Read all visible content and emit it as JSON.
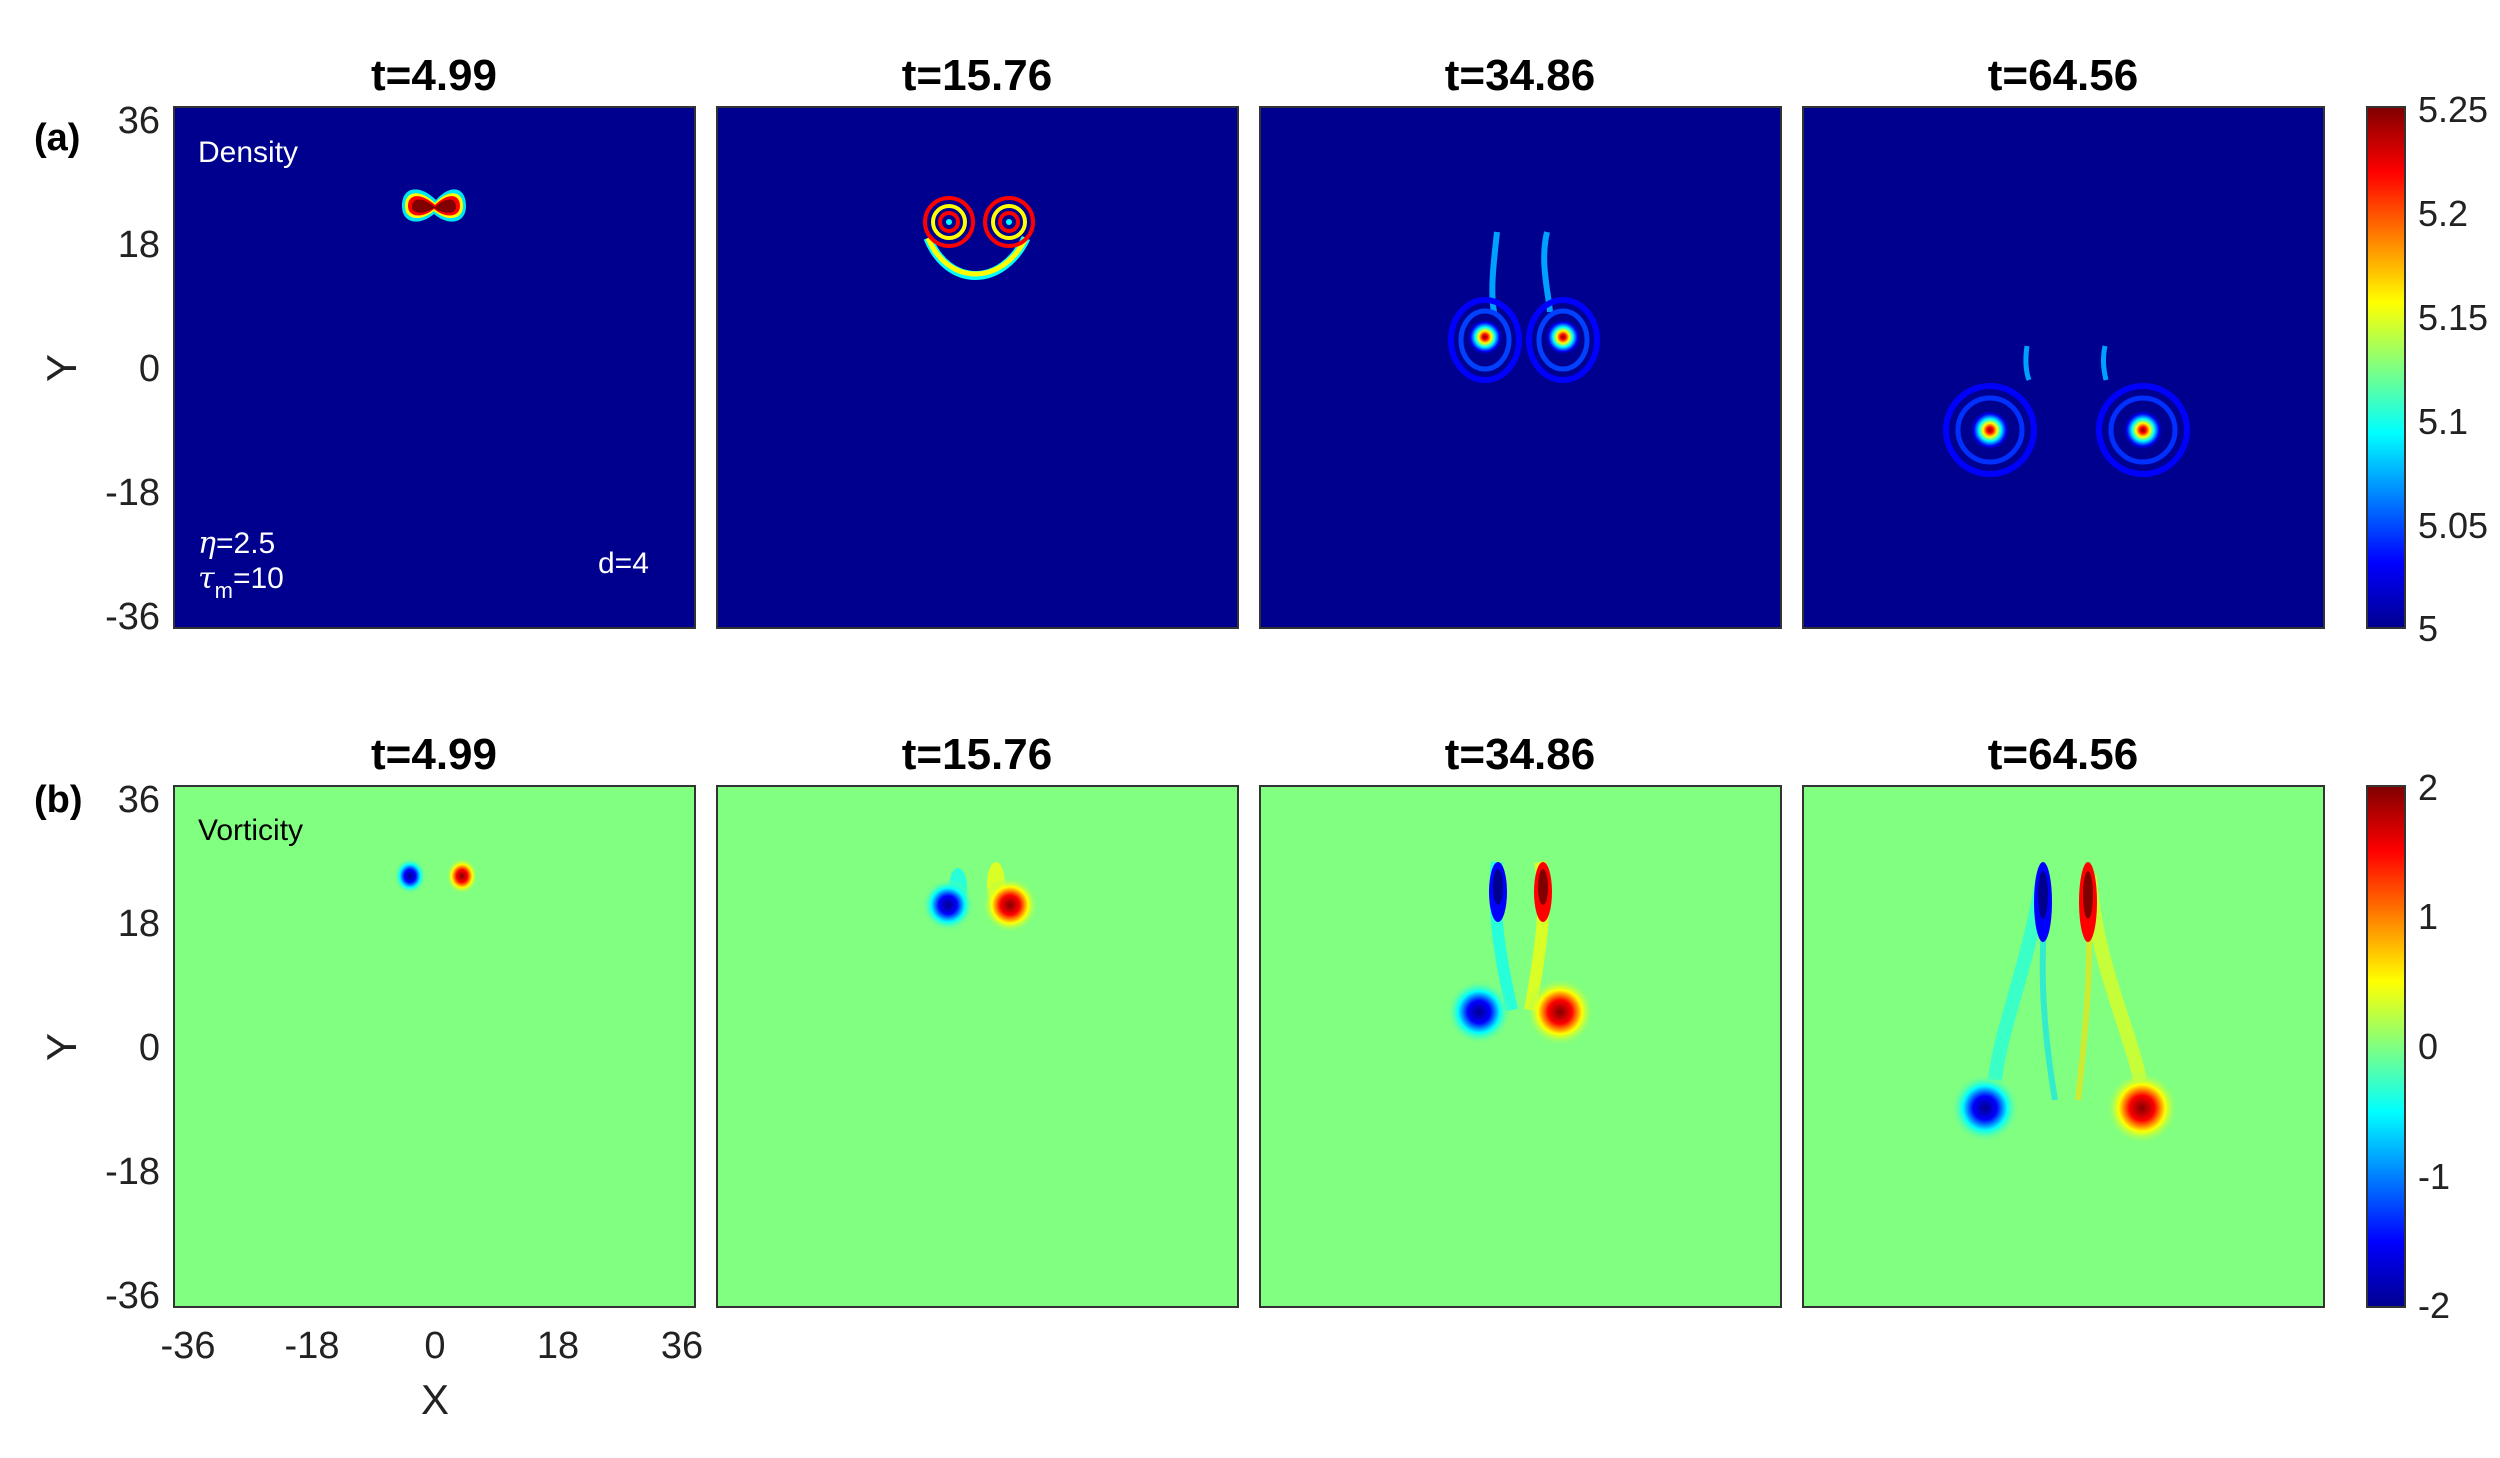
{
  "chart_data": {
    "type": "heatmap",
    "panel_labels": [
      "(a)",
      "(b)"
    ],
    "time_titles": [
      "t=4.99",
      "t=15.76",
      "t=34.86",
      "t=64.56"
    ],
    "xlabel": "X",
    "ylabel": "Y",
    "xticks": [
      "-36",
      "-18",
      "0",
      "18",
      "36"
    ],
    "yticks": [
      "36",
      "18",
      "0",
      "-18",
      "-36"
    ],
    "xlim": [
      -36,
      36
    ],
    "ylim": [
      -36,
      36
    ],
    "rows": [
      {
        "field": "Density",
        "annotations": {
          "eta": "=2.5",
          "tau": "=10",
          "d": "d=4"
        },
        "colorbar": {
          "min": 5,
          "max": 5.25,
          "ticks": [
            "5.25",
            "5.2",
            "5.15",
            "5.1",
            "5.05",
            "5"
          ]
        }
      },
      {
        "field": "Vorticity",
        "colorbar": {
          "min": -2,
          "max": 2,
          "ticks": [
            "2",
            "1",
            "0",
            "-1",
            "-2"
          ]
        }
      }
    ],
    "colormap": "jet",
    "colors": {
      "jet_low": "#00008f",
      "jet_mid": "#80ff80",
      "jet_high": "#800000"
    }
  }
}
